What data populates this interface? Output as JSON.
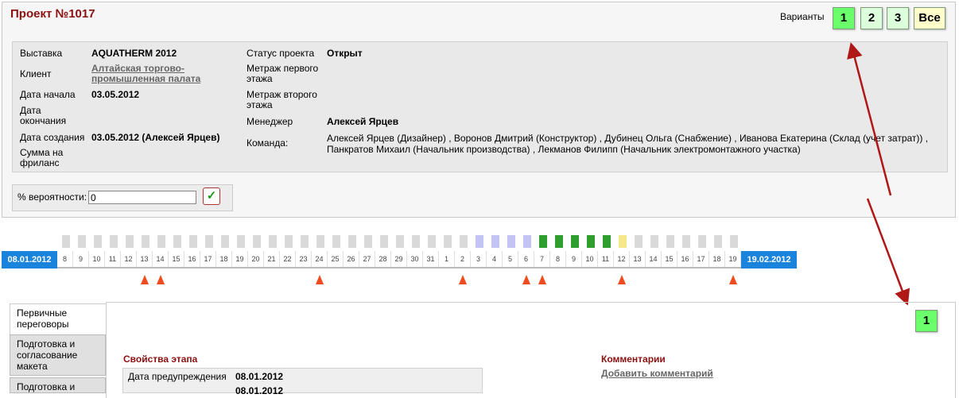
{
  "project": {
    "title": "Проект №1017",
    "variants_label": "Варианты",
    "variants": [
      {
        "label": "1",
        "color": "#6bff6b"
      },
      {
        "label": "2",
        "color": "#dcffdc"
      },
      {
        "label": "3",
        "color": "#dcffdc"
      },
      {
        "label": "Все",
        "color": "#ffffcc"
      }
    ]
  },
  "info": {
    "exhibition_label": "Выставка",
    "exhibition_value": "AQUATHERM 2012",
    "client_label": "Клиент",
    "client_line1": "Алтайская торгово-",
    "client_line2": "промышленная палата",
    "start_label": "Дата начала",
    "start_value": "03.05.2012",
    "end_label_1": "Дата",
    "end_label_2": "окончания",
    "created_label": "Дата создания",
    "created_value": "03.05.2012 (Алексей Ярцев)",
    "freelance_label_1": "Сумма на",
    "freelance_label_2": "фриланс",
    "status_label": "Статус проекта",
    "status_value": "Открыт",
    "floor1_label_1": "Метраж первого",
    "floor1_label_2": "этажа",
    "floor2_label_1": "Метраж второго",
    "floor2_label_2": "этажа",
    "manager_label": "Менеджер",
    "manager_value": "Алексей Ярцев",
    "team_label": "Команда:",
    "team_line1": "Алексей Ярцев (Дизайнер) , Воронов Дмитрий (Конструктор) , Дубинец Ольга (Снабжение) , Иванова Екатерина (Склад (учет затрат)) ,",
    "team_line2": "Панкратов Михаил (Начальник производства) , Лекманов Филипп (Начальник электромонтажного участка)"
  },
  "probability": {
    "label": "% вероятности:",
    "value": "0",
    "confirm_icon": "checkmark-icon"
  },
  "timeline": {
    "start_date": "08.01.2012",
    "end_date": "19.02.2012",
    "days": [
      "8",
      "9",
      "10",
      "11",
      "12",
      "13",
      "14",
      "15",
      "16",
      "17",
      "18",
      "19",
      "20",
      "21",
      "22",
      "23",
      "24",
      "25",
      "26",
      "27",
      "28",
      "29",
      "30",
      "31",
      "1",
      "2",
      "3",
      "4",
      "5",
      "6",
      "7",
      "8",
      "9",
      "10",
      "11",
      "12",
      "13",
      "14",
      "15",
      "16",
      "17",
      "18",
      "19"
    ],
    "colors": {
      "empty": "#d9d9d9",
      "lavender": "#c4c4f4",
      "green": "#2e9e2e",
      "yellow": "#f4e88a"
    },
    "marker_color": "#f04a20"
  },
  "annotation": {
    "floating_badge": "1",
    "badge_color": "#6bff6b",
    "arrow_color": "#b01818"
  },
  "stages": {
    "tabs": [
      "Первичные переговоры",
      "Подготовка и согласование макета",
      "Подготовка и"
    ],
    "properties_title": "Свойства этапа",
    "warning_label": "Дата предупреждения",
    "warning_value": "08.01.2012",
    "row2_value": "08.01.2012",
    "comments_title": "Комментарии",
    "add_comment": "Добавить комментарий"
  }
}
